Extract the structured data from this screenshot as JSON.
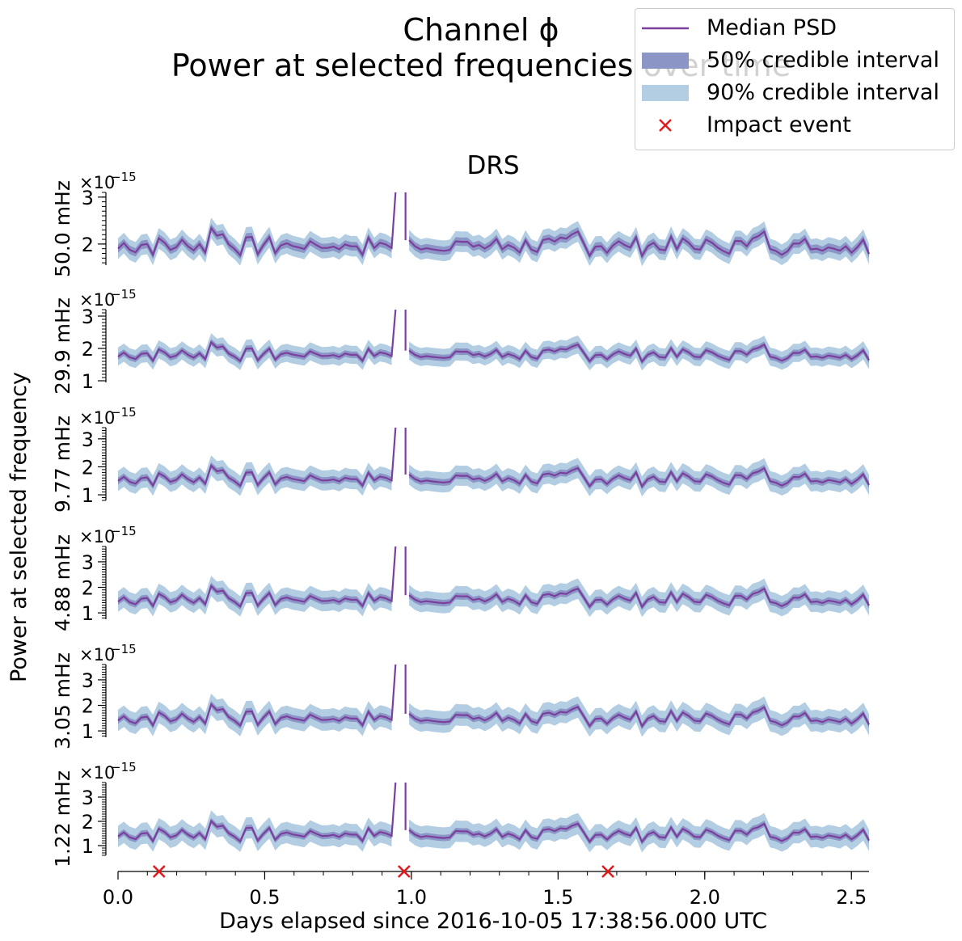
{
  "title_line1": "Channel ϕ",
  "title_line2": "Power at selected frequencies over time",
  "subplot_title": "DRS",
  "xlabel": "Days elapsed since 2016-10-05 17:38:56.000 UTC",
  "ylabel": "Power at selected frequency",
  "offset_label": "×10",
  "offset_exp": "−15",
  "colors": {
    "median": "#7b3f9e",
    "ci50": "#8c96c6",
    "ci90": "#b3cde3",
    "impact": "#e31a1c"
  },
  "legend": [
    {
      "label": "Median PSD",
      "kind": "line"
    },
    {
      "label": "50% credible interval",
      "kind": "ci50"
    },
    {
      "label": "90% credible interval",
      "kind": "ci90"
    },
    {
      "label": "Impact event",
      "kind": "marker"
    }
  ],
  "chart_data": {
    "type": "line",
    "x_range": [
      0.0,
      2.56
    ],
    "x_ticks": [
      "0.0",
      "0.5",
      "1.0",
      "1.5",
      "2.0",
      "2.5"
    ],
    "x_tick_values": [
      0.0,
      0.5,
      1.0,
      1.5,
      2.0,
      2.5
    ],
    "spike_x": [
      0.946,
      0.98
    ],
    "impact_events_x": [
      0.14,
      0.975,
      1.67
    ],
    "panels": [
      {
        "label": "50.0 mHz",
        "y_range": [
          1.55,
          3.1
        ],
        "y_ticks": [
          "2",
          "3"
        ],
        "y_tick_values": [
          2,
          3
        ],
        "base": 2.0,
        "amp": 0.16,
        "ci50": 0.09,
        "ci90": 0.22
      },
      {
        "label": "29.9 mHz",
        "y_range": [
          0.95,
          3.2
        ],
        "y_ticks": [
          "1",
          "2",
          "3"
        ],
        "y_tick_values": [
          1,
          2,
          3
        ],
        "base": 1.85,
        "amp": 0.16,
        "ci50": 0.1,
        "ci90": 0.28
      },
      {
        "label": "9.77 mHz",
        "y_range": [
          0.8,
          3.4
        ],
        "y_ticks": [
          "1",
          "2",
          "3"
        ],
        "y_tick_values": [
          1,
          2,
          3
        ],
        "base": 1.62,
        "amp": 0.2,
        "ci50": 0.12,
        "ci90": 0.36
      },
      {
        "label": "4.88 mHz",
        "y_range": [
          0.75,
          3.6
        ],
        "y_ticks": [
          "1",
          "2",
          "3"
        ],
        "y_tick_values": [
          1,
          2,
          3
        ],
        "base": 1.58,
        "amp": 0.22,
        "ci50": 0.13,
        "ci90": 0.4
      },
      {
        "label": "3.05 mHz",
        "y_range": [
          0.75,
          3.6
        ],
        "y_ticks": [
          "1",
          "2",
          "3"
        ],
        "y_tick_values": [
          1,
          2,
          3
        ],
        "base": 1.55,
        "amp": 0.23,
        "ci50": 0.13,
        "ci90": 0.42
      },
      {
        "label": "1.22 mHz",
        "y_range": [
          0.6,
          3.6
        ],
        "y_ticks": [
          "1",
          "2",
          "3"
        ],
        "y_tick_values": [
          1,
          2,
          3
        ],
        "base": 1.52,
        "amp": 0.23,
        "ci50": 0.13,
        "ci90": 0.44
      }
    ]
  }
}
